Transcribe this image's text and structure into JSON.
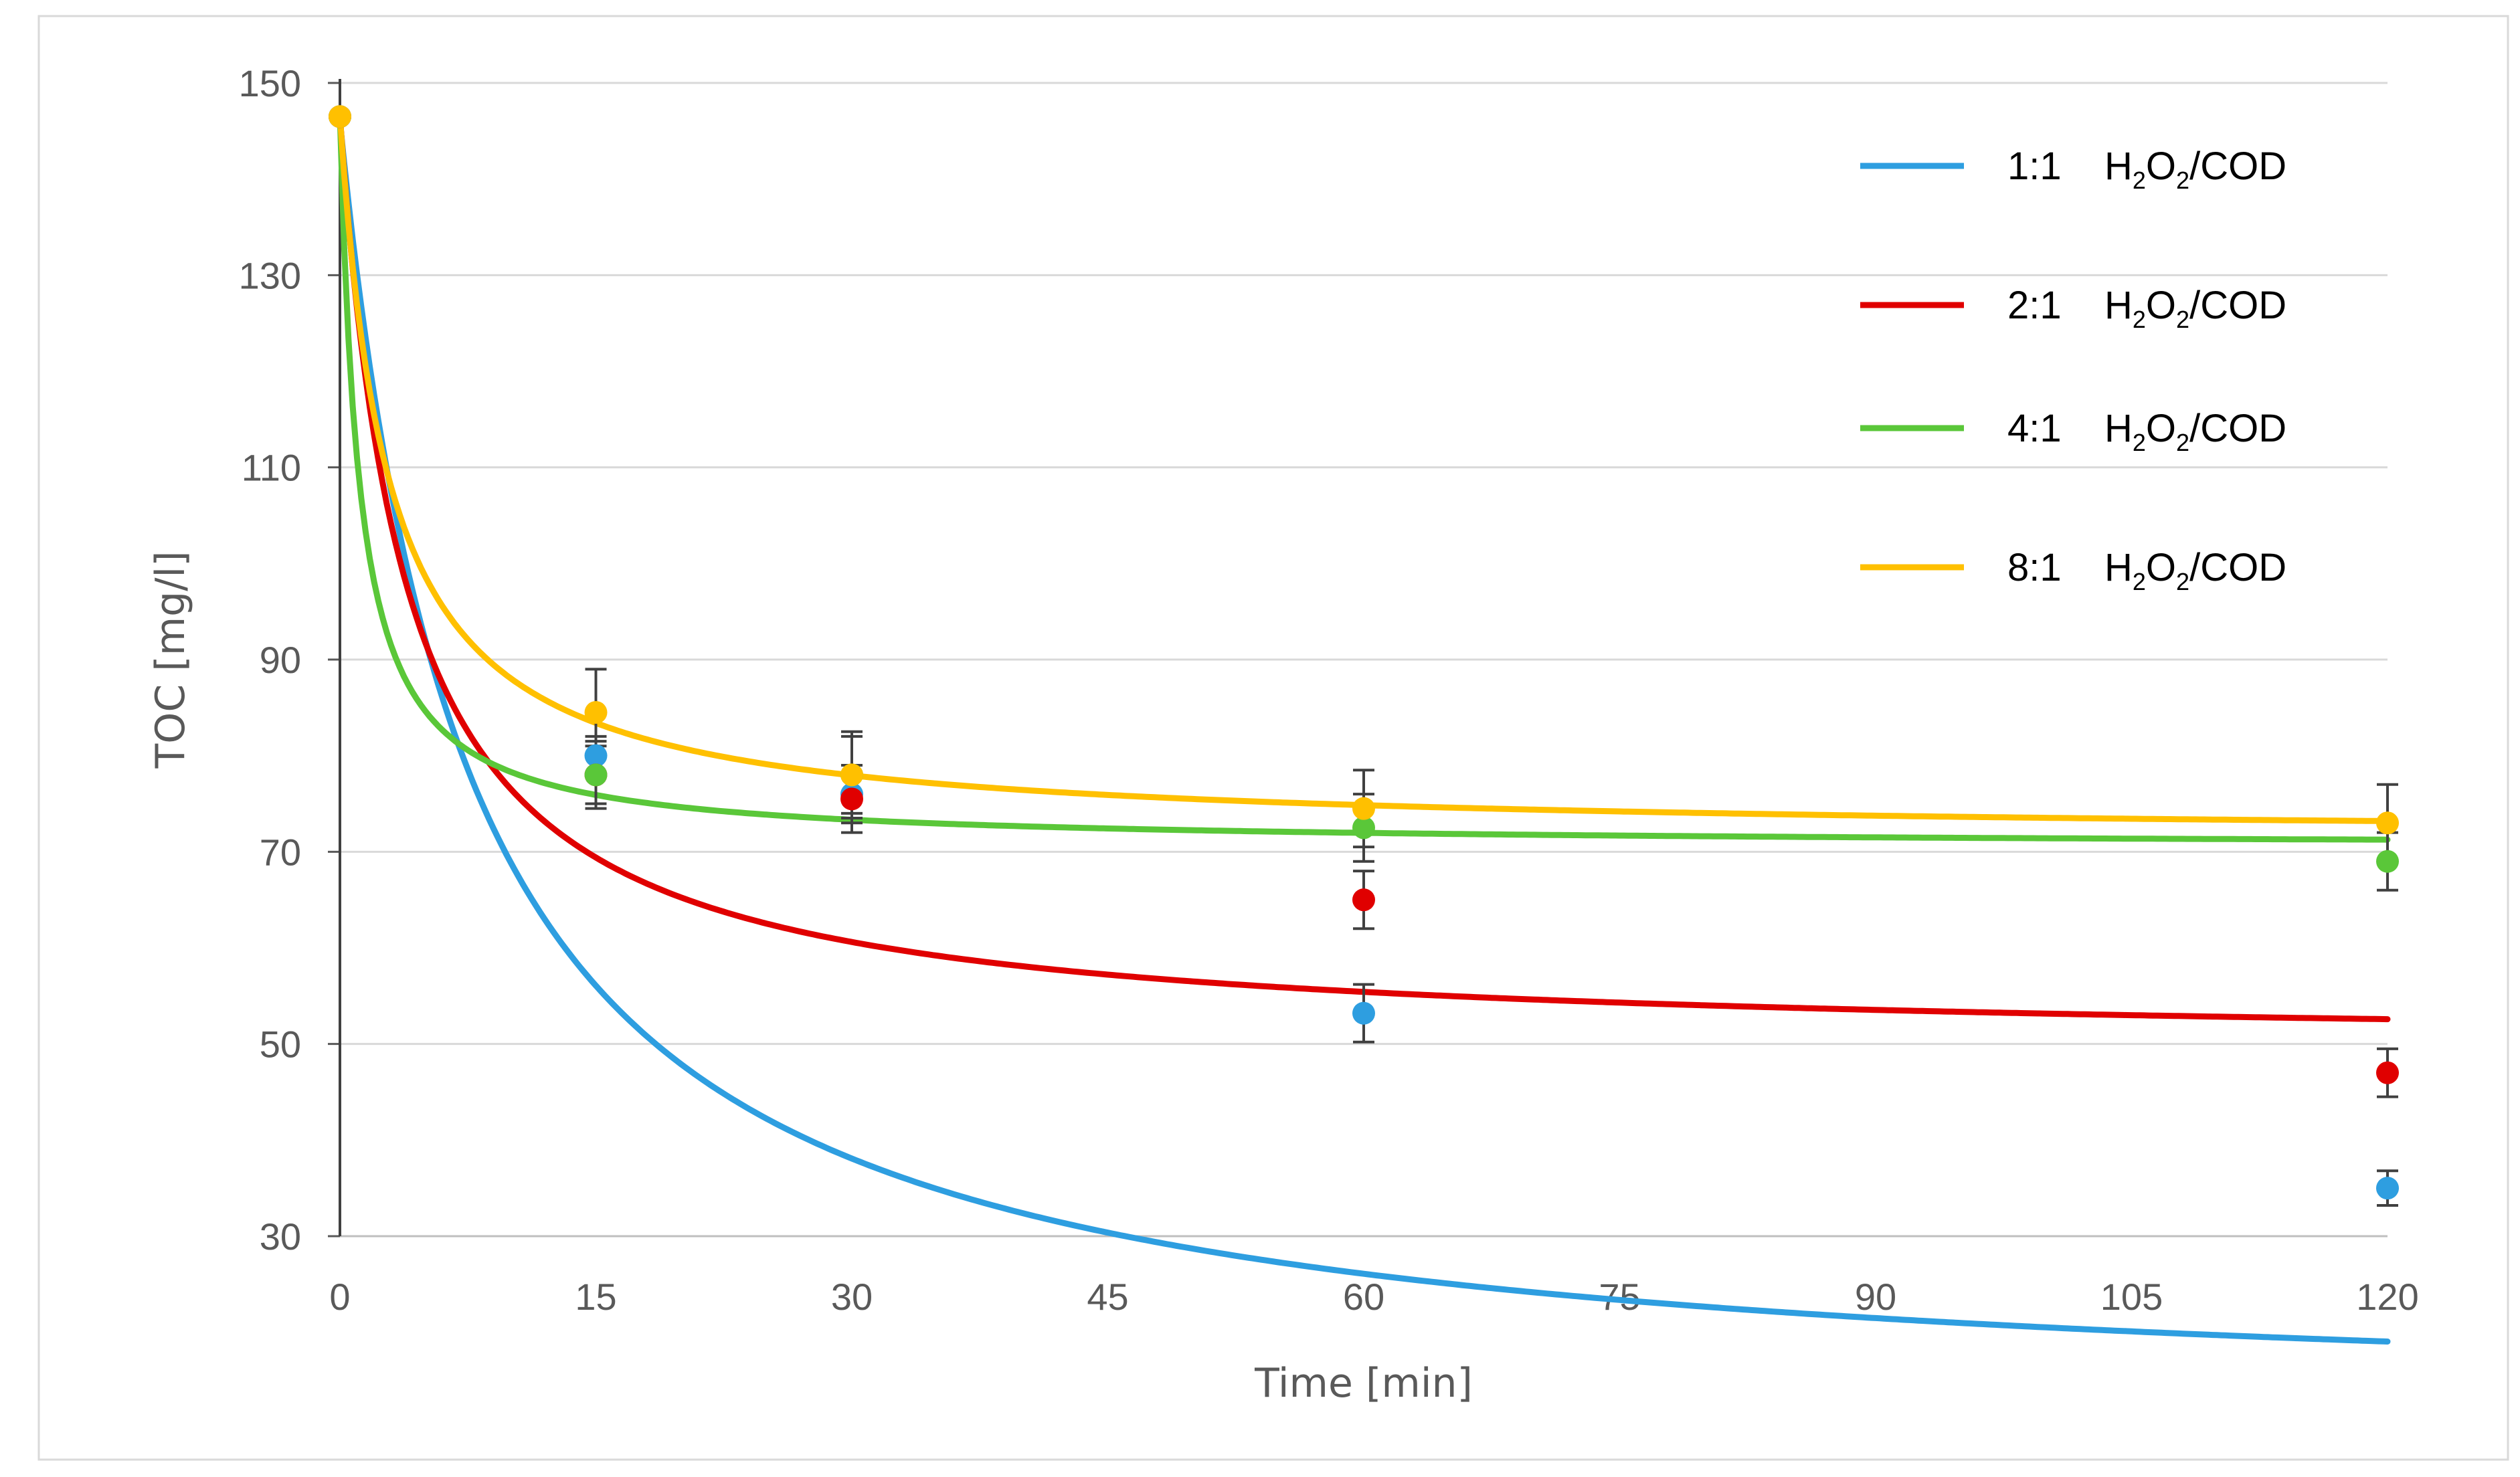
{
  "chart_data": {
    "type": "scatter",
    "title": "",
    "xlabel": "Time [min]",
    "ylabel": "TOC [mg/l]",
    "xlim": [
      0,
      120
    ],
    "ylim": [
      30,
      150
    ],
    "xticks": [
      0,
      15,
      30,
      45,
      60,
      75,
      90,
      105,
      120
    ],
    "yticks": [
      30,
      50,
      70,
      90,
      110,
      130,
      150
    ],
    "grid": "horizontal",
    "legend_position": "top-right",
    "legend_suffix": {
      "base_h": "H",
      "sub_1": "2",
      "base_o": "O",
      "sub_2": "2",
      "tail": "/COD"
    },
    "series": [
      {
        "name": "1:1",
        "color": "#2e9ee0",
        "x": [
          0,
          15,
          30,
          60,
          120
        ],
        "values": [
          146.5,
          80,
          76,
          53.2,
          35
        ],
        "errors": [
          0,
          2,
          3,
          3,
          1.8
        ],
        "fit": {
          "model": "c + a/(1 + t/b)",
          "c": 11.1,
          "a": 134.9,
          "b": 7.5
        }
      },
      {
        "name": "2:1",
        "color": "#e00000",
        "x": [
          0,
          15,
          30,
          60,
          120
        ],
        "values": [
          146.5,
          78,
          75.5,
          65,
          47
        ],
        "errors": [
          0,
          3,
          3.5,
          3,
          2.5
        ],
        "fit": {
          "model": "c + a/(1 + t/b)",
          "c": 49.56,
          "a": 96.94,
          "b": 3.86
        }
      },
      {
        "name": "4:1",
        "color": "#5ac739",
        "x": [
          0,
          15,
          30,
          60,
          120
        ],
        "values": [
          146.5,
          78,
          78,
          72.5,
          69
        ],
        "errors": [
          0,
          3.5,
          4,
          3.5,
          3
        ],
        "fit": {
          "model": "c + a/(1 + t/b)",
          "c": 70.55,
          "a": 75.95,
          "b": 1.14
        }
      },
      {
        "name": "8:1",
        "color": "#ffc000",
        "x": [
          0,
          15,
          30,
          60,
          120
        ],
        "values": [
          146.5,
          84.5,
          78,
          74.5,
          73
        ],
        "errors": [
          0,
          4.5,
          4.5,
          4,
          4
        ],
        "fit": {
          "model": "c + a/(1 + t/b)",
          "c": 71.46,
          "a": 75.04,
          "b": 2.84
        }
      }
    ]
  }
}
